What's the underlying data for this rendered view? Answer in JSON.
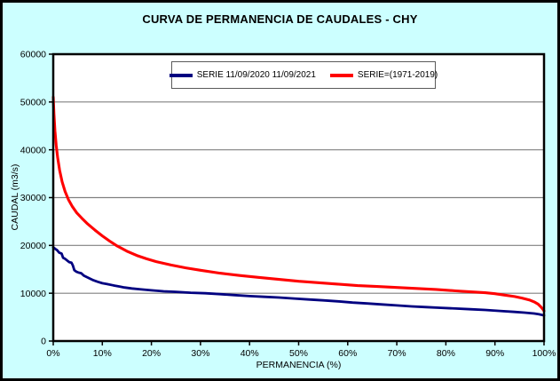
{
  "chart": {
    "title": "CURVA DE PERMANENCIA DE CAUDALES - CHY"
  },
  "colors": {
    "frame_background": "#CCFFFF",
    "plot_background": "#FFFFFF",
    "gridline": "#808080",
    "axis": "#000000",
    "series_blue": "#000080",
    "series_red": "#FF0000"
  },
  "chart_data": {
    "type": "line",
    "title": "CURVA DE PERMANENCIA DE CAUDALES - CHY",
    "xlabel": "PERMANENCIA (%)",
    "ylabel": "CAUDAL (m3/s)",
    "xlim": [
      0,
      100
    ],
    "ylim": [
      0,
      60000
    ],
    "x_tick_values": [
      0,
      10,
      20,
      30,
      40,
      50,
      60,
      70,
      80,
      90,
      100
    ],
    "x_tick_labels": [
      "0%",
      "10%",
      "20%",
      "30%",
      "40%",
      "50%",
      "60%",
      "70%",
      "80%",
      "90%",
      "100%"
    ],
    "y_tick_values": [
      0,
      10000,
      20000,
      30000,
      40000,
      50000,
      60000
    ],
    "y_tick_labels": [
      "0",
      "10000",
      "20000",
      "30000",
      "40000",
      "50000",
      "60000"
    ],
    "grid": "horizontal",
    "legend_position": "top-center-inside",
    "series": [
      {
        "name": "SERIE 11/09/2020 11/09/2021",
        "color": "#000080",
        "width": 2.8,
        "x": [
          0,
          0.5,
          0.8,
          1.2,
          1.7,
          2.0,
          2.4,
          2.9,
          3.3,
          3.7,
          4.0,
          4.3,
          4.7,
          5.2,
          5.7,
          6.2,
          6.8,
          7.4,
          8.2,
          9,
          10,
          11,
          12.5,
          13.5,
          14.5,
          16,
          18,
          20,
          22.5,
          25,
          28,
          31,
          34,
          37,
          40,
          43,
          46,
          49,
          52,
          55,
          58,
          61,
          64,
          67,
          70,
          73,
          76,
          79,
          82,
          85,
          88,
          91,
          94,
          96,
          98,
          99,
          100
        ],
        "y": [
          19600,
          19200,
          19000,
          18500,
          18300,
          17400,
          17200,
          16800,
          16500,
          16400,
          15800,
          14800,
          14500,
          14300,
          14200,
          13700,
          13400,
          13100,
          12700,
          12400,
          12100,
          11900,
          11600,
          11400,
          11200,
          11000,
          10800,
          10600,
          10400,
          10300,
          10100,
          10000,
          9800,
          9600,
          9400,
          9250,
          9100,
          8900,
          8700,
          8500,
          8300,
          8050,
          7850,
          7650,
          7450,
          7250,
          7100,
          6950,
          6800,
          6650,
          6500,
          6300,
          6100,
          5950,
          5750,
          5600,
          5350
        ]
      },
      {
        "name": "SERIE=(1971-2019)",
        "color": "#FF0000",
        "width": 3.1,
        "x": [
          0,
          0.15,
          0.35,
          0.6,
          0.9,
          1.3,
          1.8,
          2.4,
          3.1,
          3.9,
          4.8,
          5.8,
          7,
          8.5,
          10,
          11.5,
          13,
          15,
          17,
          19,
          21,
          24,
          27,
          30,
          34,
          38,
          42,
          46,
          50,
          54,
          58,
          62,
          66,
          70,
          74,
          78,
          82,
          85,
          88,
          90,
          92,
          94,
          95.5,
          97,
          98,
          98.8,
          99.4,
          99.8,
          100
        ],
        "y": [
          51000,
          47500,
          44000,
          41000,
          38300,
          35700,
          33300,
          31300,
          29600,
          28100,
          26800,
          25700,
          24500,
          23200,
          22000,
          20900,
          19900,
          18800,
          17900,
          17200,
          16600,
          15900,
          15300,
          14800,
          14200,
          13700,
          13300,
          12900,
          12500,
          12200,
          11900,
          11600,
          11400,
          11200,
          11000,
          10800,
          10500,
          10300,
          10100,
          9900,
          9600,
          9300,
          9000,
          8600,
          8200,
          7700,
          7100,
          6600,
          6300
        ]
      }
    ]
  },
  "legend": {
    "items": [
      {
        "label": "SERIE 11/09/2020 11/09/2021",
        "color": "#000080"
      },
      {
        "label": "SERIE=(1971-2019)",
        "color": "#FF0000"
      }
    ]
  }
}
